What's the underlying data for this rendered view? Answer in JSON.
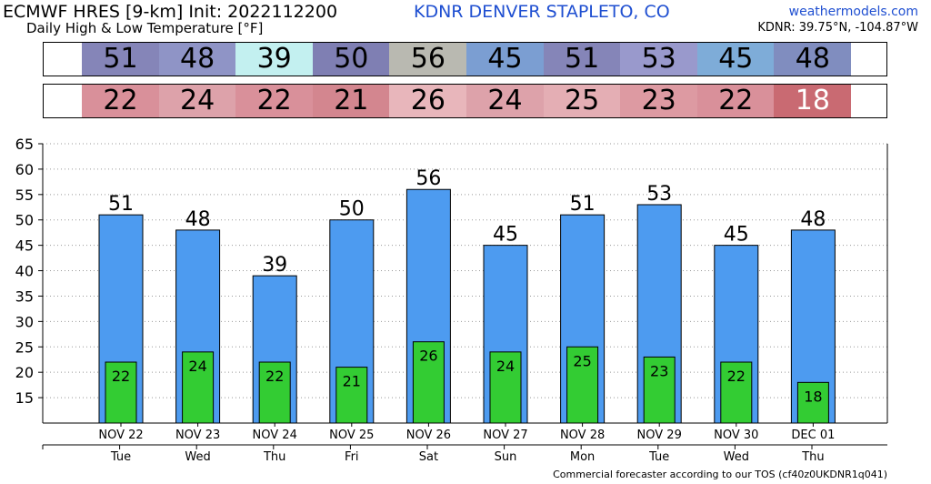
{
  "header": {
    "title": "ECMWF HRES [9-km] Init: 2022112200",
    "subtitle": "Daily High & Low Temperature [°F]",
    "station": "KDNR DENVER STAPLETO, CO",
    "site": "weathermodels.com",
    "coords": "KDNR: 39.75°N, -104.87°W"
  },
  "strips": {
    "high_colors": [
      "#8585b8",
      "#8f94c6",
      "#c3f0f0",
      "#7f7fb3",
      "#b9b9b1",
      "#7b9ed2",
      "#8585b8",
      "#9999cc",
      "#7eacd8",
      "#808dbf"
    ],
    "low_colors": [
      "#d9909a",
      "#dda2aa",
      "#d9909a",
      "#d3868f",
      "#e8b6bb",
      "#dda2aa",
      "#e4aeb4",
      "#dd9aa2",
      "#d9909a",
      "#c96a72"
    ],
    "last_low_text_color": "#ffffff"
  },
  "chart_data": {
    "type": "bar",
    "categories": [
      "NOV 22",
      "NOV 23",
      "NOV 24",
      "NOV 25",
      "NOV 26",
      "NOV 27",
      "NOV 28",
      "NOV 29",
      "NOV 30",
      "DEC 01"
    ],
    "weekdays": [
      "Tue",
      "Wed",
      "Thu",
      "Fri",
      "Sat",
      "Sun",
      "Mon",
      "Tue",
      "Wed",
      "Thu"
    ],
    "series": [
      {
        "values": [
          51,
          48,
          39,
          50,
          56,
          45,
          51,
          53,
          45,
          48
        ],
        "color": "#4d9bf0"
      },
      {
        "values": [
          22,
          24,
          22,
          21,
          26,
          24,
          25,
          23,
          22,
          18
        ],
        "color": "#33cc33"
      }
    ],
    "ylim": [
      10,
      65
    ],
    "yticks": [
      15,
      20,
      25,
      30,
      35,
      40,
      45,
      50,
      55,
      60,
      65
    ],
    "grid": true
  },
  "footer": "Commercial forecaster according to our TOS (cf40z0UKDNR1q041)"
}
